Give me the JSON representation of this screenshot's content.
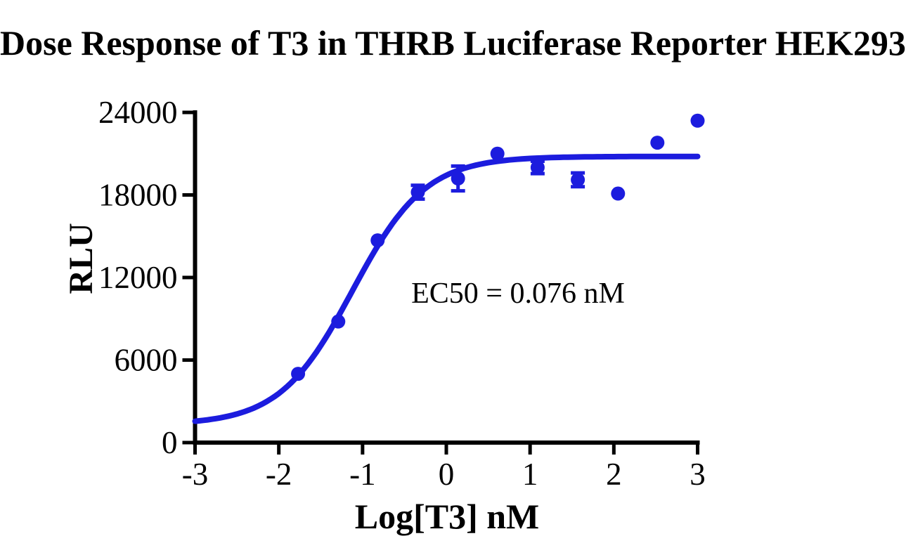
{
  "chart_data": {
    "type": "scatter",
    "title": "Dose Response of T3 in THRB Luciferase Reporter HEK293",
    "xlabel": "Log[T3] nM",
    "ylabel": "RLU",
    "annotation": "EC50 = 0.076 nM",
    "ec50_nM": 0.076,
    "xlim": [
      -3,
      3
    ],
    "ylim": [
      0,
      24000
    ],
    "xticks": [
      -3,
      -2,
      -1,
      0,
      1,
      2,
      3
    ],
    "yticks": [
      0,
      6000,
      12000,
      18000,
      24000
    ],
    "grid": false,
    "legend": "none",
    "accent_color": "#1C1CDE",
    "axis_color": "#000000",
    "series": [
      {
        "name": "T3",
        "color": "#1C1CDE",
        "marker": "circle",
        "points": [
          {
            "x": -1.77,
            "y": 5000,
            "err": 0
          },
          {
            "x": -1.29,
            "y": 8800,
            "err": 0
          },
          {
            "x": -0.82,
            "y": 14700,
            "err": 0
          },
          {
            "x": -0.34,
            "y": 18200,
            "err": 500
          },
          {
            "x": 0.14,
            "y": 19200,
            "err": 900
          },
          {
            "x": 0.61,
            "y": 21000,
            "err": 0
          },
          {
            "x": 1.09,
            "y": 20000,
            "err": 450
          },
          {
            "x": 1.57,
            "y": 19100,
            "err": 500
          },
          {
            "x": 2.05,
            "y": 18100,
            "err": 0
          },
          {
            "x": 2.52,
            "y": 21800,
            "err": 0
          },
          {
            "x": 3.0,
            "y": 23400,
            "err": 0
          }
        ]
      }
    ],
    "fit_curve": {
      "model": "4PL",
      "bottom": 1300,
      "top": 20800,
      "log_ec50": -1.12,
      "hill": 1.0,
      "x_range": [
        -3,
        3
      ]
    }
  }
}
